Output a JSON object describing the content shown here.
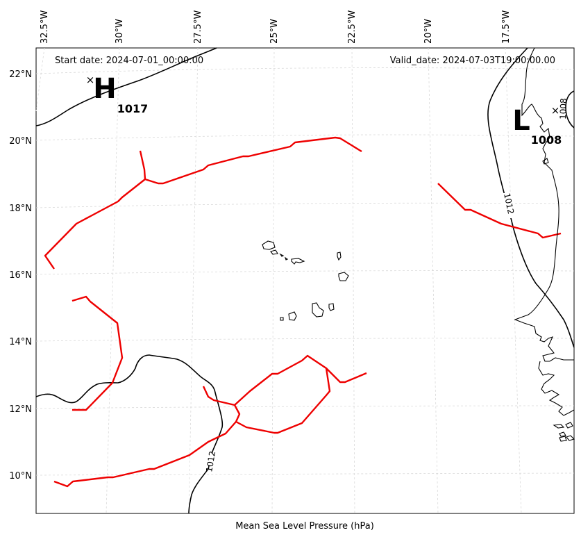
{
  "header": {
    "start_date": "Start date: 2024-07-01_00:00:00",
    "valid_date": "Valid_date: 2024-07-03T19:00:00.00"
  },
  "xlabel": "Mean Sea Level Pressure (hPa)",
  "lon_ticks": [
    "32.5°W",
    "30°W",
    "27.5°W",
    "25°W",
    "22.5°W",
    "20°W",
    "17.5°W"
  ],
  "lat_ticks": [
    "22°N",
    "20°N",
    "18°N",
    "16°N",
    "14°N",
    "12°N",
    "10°N"
  ],
  "pressure_centers": [
    {
      "symbol": "H",
      "value": "1017"
    },
    {
      "symbol": "L",
      "value": "1008"
    }
  ],
  "contour_labels": [
    "1012",
    "1012",
    "1008"
  ],
  "colors": {
    "fronts": "#ee0000",
    "isobars": "#000000",
    "grid": "#d9d9d9"
  }
}
